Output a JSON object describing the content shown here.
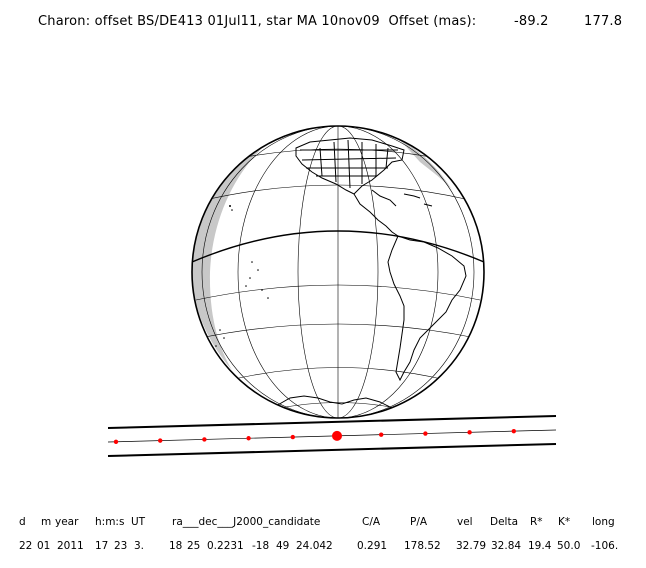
{
  "header": {
    "caption": "Charon: offset BS/DE413 01Jul11, star MA 10nov09  Offset (mas):",
    "offset_ra": "-89.2",
    "offset_dec": "177.8"
  },
  "colors": {
    "ink": "#000000",
    "night_shade": "#c8c8c8",
    "track_point": "#ff0000",
    "background": "#ffffff"
  },
  "table": {
    "headers": [
      "d",
      "m",
      "year",
      "h:m:s",
      "UT",
      "ra___dec___J2000_candidate",
      "C/A",
      "P/A",
      "vel",
      "Delta",
      "R*",
      "K*",
      "long"
    ],
    "values": [
      "22",
      "01",
      "2011",
      "17",
      "23",
      "3.",
      "18",
      "25",
      "0.2231",
      "-18",
      "49",
      "24.042",
      "0.291",
      "178.52",
      "32.79",
      "32.84",
      "19.4",
      "50.0",
      "-106."
    ]
  },
  "track": {
    "points": 10,
    "closest_approach_index": 5
  }
}
